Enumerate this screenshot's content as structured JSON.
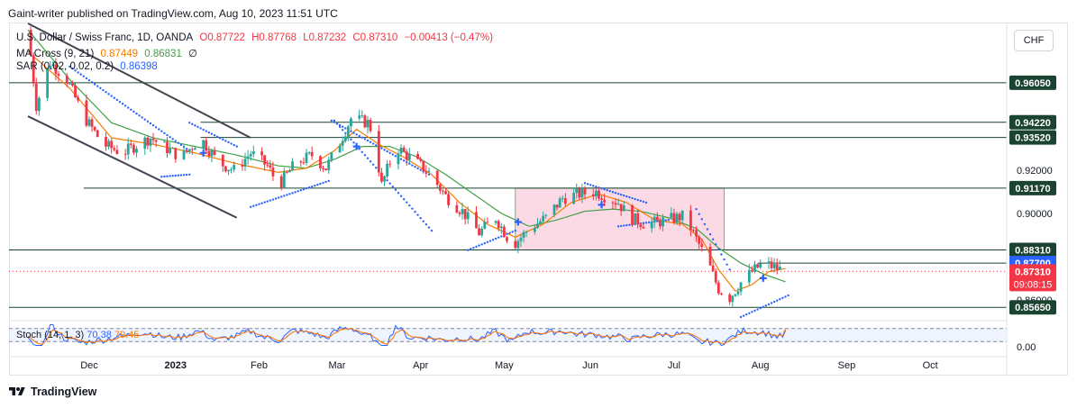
{
  "header": {
    "publisher_line": "Gaint-writer published on TradingView.com, Aug 10, 2023 11:51 UTC"
  },
  "legend": {
    "symbol": "U.S. Dollar / Swiss Franc, 1D, OANDA",
    "open": "O0.87722",
    "high": "H0.87768",
    "low": "L0.87232",
    "close": "C0.87310",
    "change": "−0.00413 (−0.47%)",
    "ma_label": "MA Cross (9, 21)",
    "ma_fast": "0.87449",
    "ma_slow": "0.86831",
    "ma_symbol": "∅",
    "sar_label": "SAR (0.02, 0.02, 0.2)",
    "sar_value": "0.86398"
  },
  "currency_button": "CHF",
  "price_axis": {
    "labels": [
      "0.92000",
      "0.90000",
      "0.86000"
    ],
    "level_tags": [
      "0.96050",
      "0.94220",
      "0.93520",
      "0.91170",
      "0.88310",
      "0.87700",
      "0.85650"
    ],
    "current_price": "0.87310",
    "countdown": "09:08:15"
  },
  "time_axis": [
    "Dec",
    "2023",
    "Feb",
    "Mar",
    "Apr",
    "May",
    "Jun",
    "Jul",
    "Aug",
    "Sep",
    "Oct"
  ],
  "stoch": {
    "label": "Stoch (14, 1, 3)",
    "k": "70.38",
    "d": "79.45",
    "axis_label": "0.00"
  },
  "footer": {
    "brand": "TradingView"
  },
  "colors": {
    "up": "#26a69a",
    "down": "#f23645",
    "ma_fast": "#f57c00",
    "ma_slow": "#43a047",
    "sar": "#2962ff",
    "zone": "#f8bbd0",
    "level": "#1b4332"
  },
  "chart_data": {
    "type": "candlestick",
    "symbol": "U.S. Dollar / Swiss Franc",
    "interval": "1D",
    "ylim": [
      0.852,
      0.988
    ],
    "y_ticks": [
      0.92,
      0.9,
      0.86
    ],
    "horizontal_levels": [
      0.9605,
      0.9422,
      0.9352,
      0.9117,
      0.8831,
      0.877,
      0.8565
    ],
    "rectangle": {
      "from_day": 175,
      "to_day": 250,
      "top": 0.9117,
      "bottom": 0.8831
    },
    "trend_channel": [
      {
        "from": [
          0,
          0.988
        ],
        "to": [
          80,
          0.935
        ]
      },
      {
        "from": [
          0,
          0.945
        ],
        "to": [
          75,
          0.898
        ]
      }
    ],
    "month_ticks": [
      {
        "label": "Dec",
        "day": 22
      },
      {
        "label": "2023",
        "day": 53
      },
      {
        "label": "Feb",
        "day": 83
      },
      {
        "label": "Mar",
        "day": 111
      },
      {
        "label": "Apr",
        "day": 141
      },
      {
        "label": "May",
        "day": 171
      },
      {
        "label": "Jun",
        "day": 202
      },
      {
        "label": "Jul",
        "day": 232
      },
      {
        "label": "Aug",
        "day": 263
      },
      {
        "label": "Sep",
        "day": 294
      },
      {
        "label": "Oct",
        "day": 324
      }
    ],
    "close_anchors": [
      [
        0,
        0.985
      ],
      [
        3,
        0.95
      ],
      [
        8,
        0.97
      ],
      [
        14,
        0.962
      ],
      [
        20,
        0.945
      ],
      [
        27,
        0.932
      ],
      [
        34,
        0.928
      ],
      [
        38,
        0.931
      ],
      [
        44,
        0.935
      ],
      [
        50,
        0.93
      ],
      [
        55,
        0.926
      ],
      [
        62,
        0.935
      ],
      [
        68,
        0.924
      ],
      [
        74,
        0.92
      ],
      [
        80,
        0.928
      ],
      [
        86,
        0.922
      ],
      [
        90,
        0.913
      ],
      [
        96,
        0.923
      ],
      [
        102,
        0.927
      ],
      [
        107,
        0.921
      ],
      [
        112,
        0.933
      ],
      [
        116,
        0.944
      ],
      [
        122,
        0.942
      ],
      [
        124,
        0.937
      ],
      [
        127,
        0.913
      ],
      [
        132,
        0.931
      ],
      [
        138,
        0.925
      ],
      [
        144,
        0.919
      ],
      [
        150,
        0.908
      ],
      [
        156,
        0.901
      ],
      [
        162,
        0.891
      ],
      [
        168,
        0.898
      ],
      [
        174,
        0.885
      ],
      [
        180,
        0.893
      ],
      [
        186,
        0.898
      ],
      [
        192,
        0.907
      ],
      [
        198,
        0.909
      ],
      [
        204,
        0.91
      ],
      [
        212,
        0.905
      ],
      [
        216,
        0.898
      ],
      [
        222,
        0.895
      ],
      [
        230,
        0.897
      ],
      [
        236,
        0.899
      ],
      [
        240,
        0.888
      ],
      [
        244,
        0.878
      ],
      [
        248,
        0.865
      ],
      [
        252,
        0.861
      ],
      [
        256,
        0.868
      ],
      [
        260,
        0.873
      ],
      [
        264,
        0.877
      ],
      [
        268,
        0.875
      ],
      [
        272,
        0.8731
      ]
    ],
    "ma_fast_anchors": [
      [
        0,
        0.975
      ],
      [
        15,
        0.958
      ],
      [
        30,
        0.935
      ],
      [
        45,
        0.932
      ],
      [
        60,
        0.928
      ],
      [
        75,
        0.923
      ],
      [
        90,
        0.919
      ],
      [
        100,
        0.921
      ],
      [
        110,
        0.929
      ],
      [
        118,
        0.939
      ],
      [
        126,
        0.932
      ],
      [
        135,
        0.926
      ],
      [
        145,
        0.918
      ],
      [
        155,
        0.905
      ],
      [
        165,
        0.895
      ],
      [
        175,
        0.889
      ],
      [
        185,
        0.895
      ],
      [
        195,
        0.905
      ],
      [
        205,
        0.909
      ],
      [
        215,
        0.905
      ],
      [
        225,
        0.897
      ],
      [
        235,
        0.895
      ],
      [
        242,
        0.888
      ],
      [
        248,
        0.874
      ],
      [
        254,
        0.864
      ],
      [
        260,
        0.867
      ],
      [
        266,
        0.873
      ],
      [
        272,
        0.8745
      ]
    ],
    "ma_slow_anchors": [
      [
        0,
        0.985
      ],
      [
        15,
        0.962
      ],
      [
        30,
        0.942
      ],
      [
        45,
        0.935
      ],
      [
        60,
        0.931
      ],
      [
        75,
        0.927
      ],
      [
        90,
        0.922
      ],
      [
        100,
        0.921
      ],
      [
        110,
        0.925
      ],
      [
        120,
        0.931
      ],
      [
        130,
        0.931
      ],
      [
        140,
        0.926
      ],
      [
        150,
        0.918
      ],
      [
        160,
        0.909
      ],
      [
        170,
        0.9
      ],
      [
        180,
        0.894
      ],
      [
        190,
        0.897
      ],
      [
        200,
        0.901
      ],
      [
        210,
        0.902
      ],
      [
        220,
        0.901
      ],
      [
        230,
        0.898
      ],
      [
        240,
        0.893
      ],
      [
        248,
        0.884
      ],
      [
        256,
        0.877
      ],
      [
        264,
        0.872
      ],
      [
        272,
        0.8683
      ]
    ],
    "sar_segments": [
      {
        "above": true,
        "from": [
          15,
          0.968
        ],
        "to": [
          58,
          0.929
        ]
      },
      {
        "above": false,
        "from": [
          48,
          0.917
        ],
        "to": [
          58,
          0.918
        ]
      },
      {
        "above": true,
        "from": [
          58,
          0.942
        ],
        "to": [
          75,
          0.931
        ]
      },
      {
        "above": false,
        "from": [
          80,
          0.903
        ],
        "to": [
          108,
          0.915
        ]
      },
      {
        "above": true,
        "from": [
          109,
          0.943
        ],
        "to": [
          144,
          0.918
        ]
      },
      {
        "above": true,
        "from": [
          110,
          0.943
        ],
        "to": [
          145,
          0.892
        ]
      },
      {
        "above": false,
        "from": [
          158,
          0.883
        ],
        "to": [
          175,
          0.892
        ]
      },
      {
        "above": true,
        "from": [
          200,
          0.914
        ],
        "to": [
          222,
          0.905
        ]
      },
      {
        "above": false,
        "from": [
          212,
          0.894
        ],
        "to": [
          230,
          0.897
        ]
      },
      {
        "above": true,
        "from": [
          240,
          0.902
        ],
        "to": [
          252,
          0.874
        ]
      },
      {
        "above": false,
        "from": [
          256,
          0.852
        ],
        "to": [
          273,
          0.862
        ]
      }
    ],
    "sar_flip_markers": [
      [
        63,
        0.928
      ],
      [
        118,
        0.931
      ],
      [
        176,
        0.896
      ],
      [
        206,
        0.904
      ],
      [
        264,
        0.87
      ]
    ],
    "stoch_range": [
      0,
      100
    ],
    "stoch_bands": [
      80,
      20
    ],
    "stoch_last": {
      "k": 70.38,
      "d": 79.45
    }
  }
}
